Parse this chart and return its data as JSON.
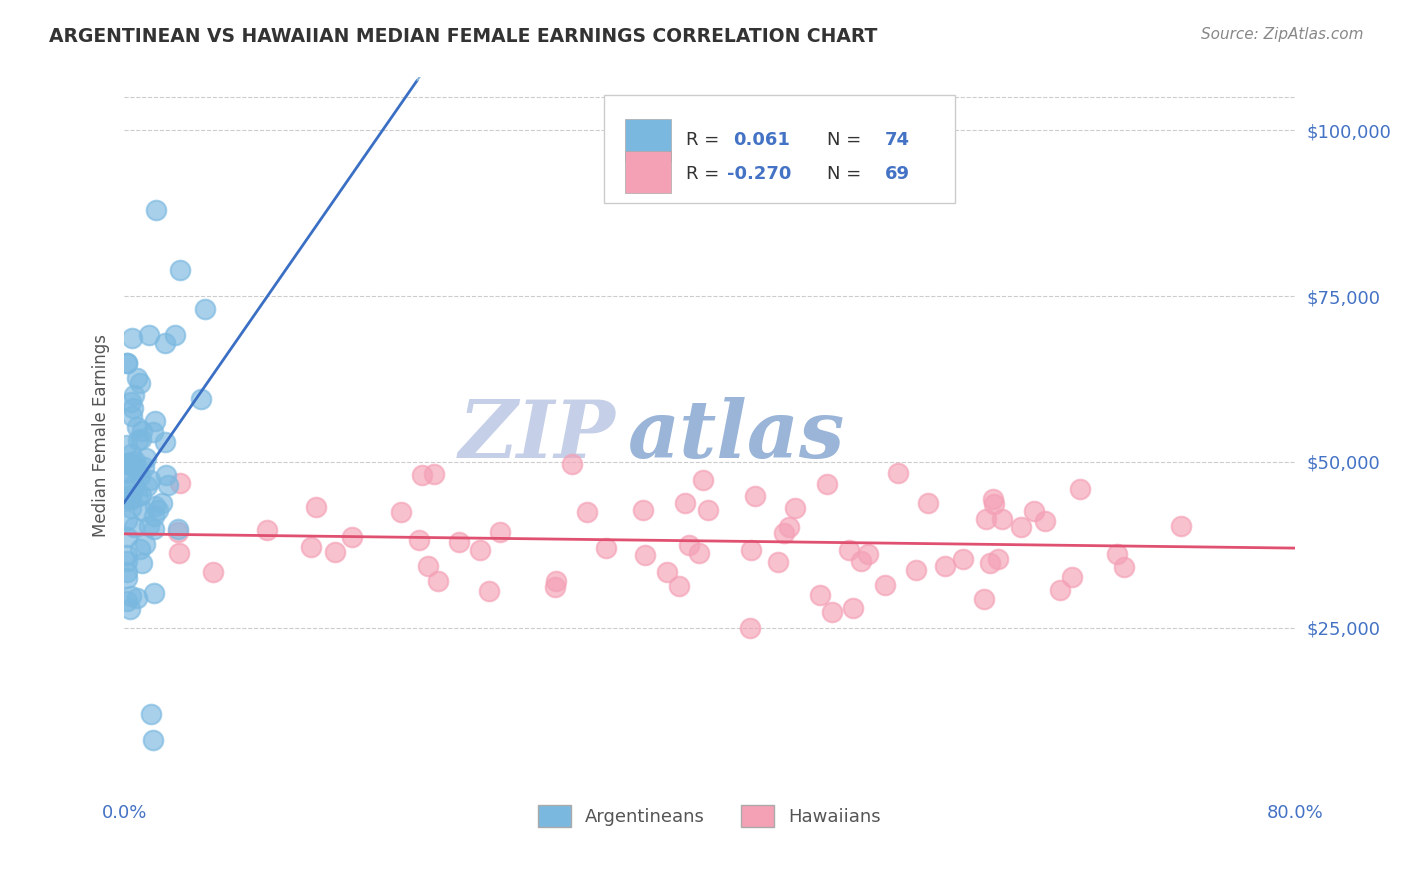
{
  "title": "ARGENTINEAN VS HAWAIIAN MEDIAN FEMALE EARNINGS CORRELATION CHART",
  "source": "Source: ZipAtlas.com",
  "ylabel": "Median Female Earnings",
  "xlim": [
    0.0,
    0.8
  ],
  "ylim": [
    0,
    108000
  ],
  "ytick_vals": [
    25000,
    50000,
    75000,
    100000
  ],
  "ytick_labels": [
    "$25,000",
    "$50,000",
    "$75,000",
    "$100,000"
  ],
  "xtick_vals": [
    0.0,
    0.8
  ],
  "xtick_labels": [
    "0.0%",
    "80.0%"
  ],
  "blue_color": "#7ab8e0",
  "pink_color": "#f4a0b5",
  "blue_line_color": "#3a6fc4",
  "blue_dashed_color": "#8ab4d8",
  "pink_line_color": "#e05070",
  "title_color": "#333333",
  "axis_color": "#4472c4",
  "grid_color": "#cccccc",
  "watermark": "ZIP atlas",
  "watermark_color_zip": "#c5cfe8",
  "watermark_color_atlas": "#9ab5d8",
  "legend_R1": "0.061",
  "legend_N1": "74",
  "legend_R2": "-0.270",
  "legend_N2": "69",
  "arg_seed": 10,
  "haw_seed": 20
}
